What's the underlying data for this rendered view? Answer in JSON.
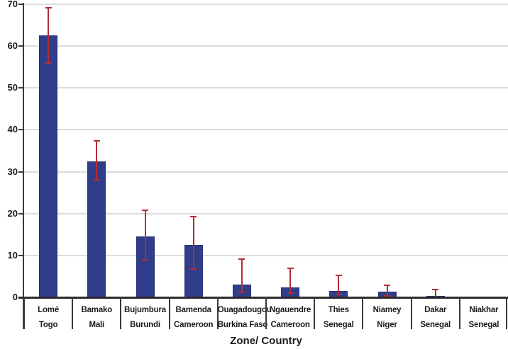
{
  "chart_data": {
    "type": "bar",
    "title": "",
    "xlabel": "Zone/ Country",
    "ylabel": "",
    "ylim": [
      0,
      70
    ],
    "yticks": [
      0,
      10,
      20,
      30,
      40,
      50,
      60,
      70
    ],
    "grid": "horizontal",
    "legend": "none",
    "bar_color": "#2f3d8a",
    "bar_border_color": "#283372",
    "error_bar_color": "#b22f35",
    "gridline_color": "#dcdcdc",
    "axis_color": "#2b2b2b",
    "text_color": "#1a1a1a",
    "categories": [
      {
        "zone": "Lomé",
        "country": "Togo"
      },
      {
        "zone": "Bamako",
        "country": "Mali"
      },
      {
        "zone": "Bujumbura",
        "country": "Burundi"
      },
      {
        "zone": "Bamenda",
        "country": "Cameroon"
      },
      {
        "zone": "Ouagadougou",
        "country": "Burkina Faso"
      },
      {
        "zone": "Ngauendre",
        "country": "Cameroon"
      },
      {
        "zone": "Thies",
        "country": "Senegal"
      },
      {
        "zone": "Niamey",
        "country": "Niger"
      },
      {
        "zone": "Dakar",
        "country": "Senegal"
      },
      {
        "zone": "Niakhar",
        "country": "Senegal"
      }
    ],
    "values": [
      62.6,
      32.4,
      14.5,
      12.5,
      3.0,
      2.4,
      1.5,
      1.4,
      0.4,
      0
    ],
    "error_bars": {
      "upper": [
        69.2,
        37.4,
        20.8,
        19.2,
        9.2,
        7.0,
        5.3,
        2.9,
        1.8,
        null
      ],
      "lower": [
        56.0,
        28.0,
        9.0,
        6.8,
        1.2,
        1.0,
        0.6,
        0.3,
        0.05,
        null
      ]
    }
  }
}
